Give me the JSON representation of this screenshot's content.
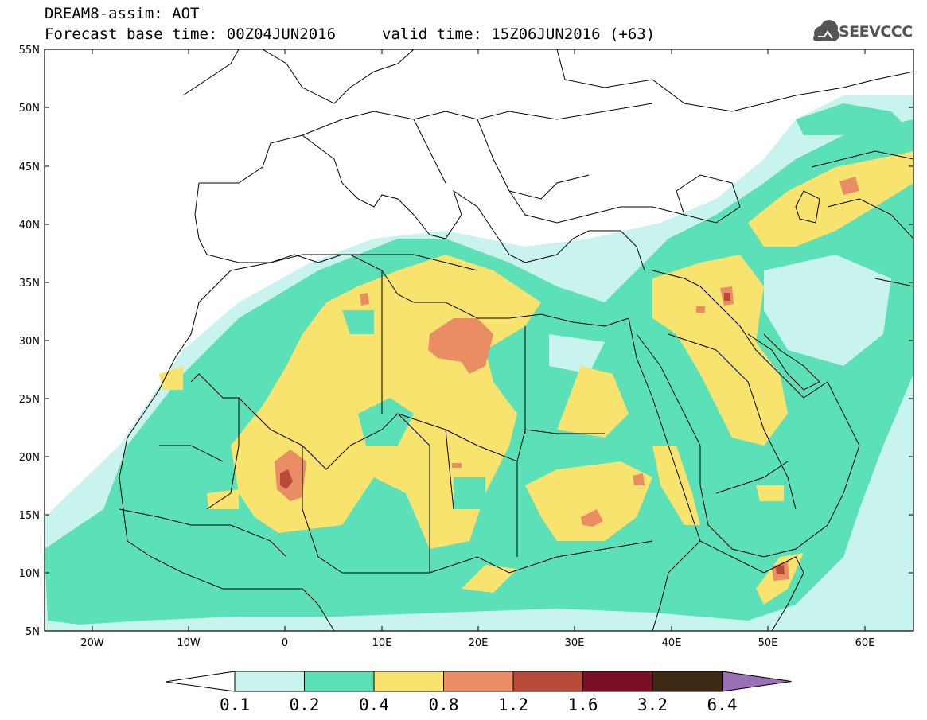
{
  "header": {
    "title": "DREAM8-assim: AOT",
    "base_time": "Forecast base time: 00Z04JUN2016",
    "valid_time": "valid time: 15Z06JUN2016 (+63)",
    "logo_text": "SEEVCCC"
  },
  "axes": {
    "lat_labels": [
      "55N",
      "50N",
      "45N",
      "40N",
      "35N",
      "30N",
      "25N",
      "20N",
      "15N",
      "10N",
      "5N"
    ],
    "lon_labels": [
      "20W",
      "10W",
      "0",
      "10E",
      "20E",
      "30E",
      "40E",
      "50E",
      "60E"
    ]
  },
  "colorbar": {
    "levels": [
      "0.1",
      "0.2",
      "0.4",
      "0.8",
      "1.2",
      "1.6",
      "3.2",
      "6.4"
    ],
    "colors": [
      "#c9f3ee",
      "#5ce0b7",
      "#f7e36e",
      "#ea8c64",
      "#b94a3a",
      "#7a0f26",
      "#3c2a14",
      "#9a70b6"
    ],
    "under_color": "#ffffff"
  },
  "colors": {
    "land_line": "#000000",
    "aot_01": "#c9f3ee",
    "aot_02": "#5ce0b7",
    "aot_04": "#f7e36e",
    "aot_08": "#ea8c64",
    "aot_12": "#b94a3a"
  }
}
